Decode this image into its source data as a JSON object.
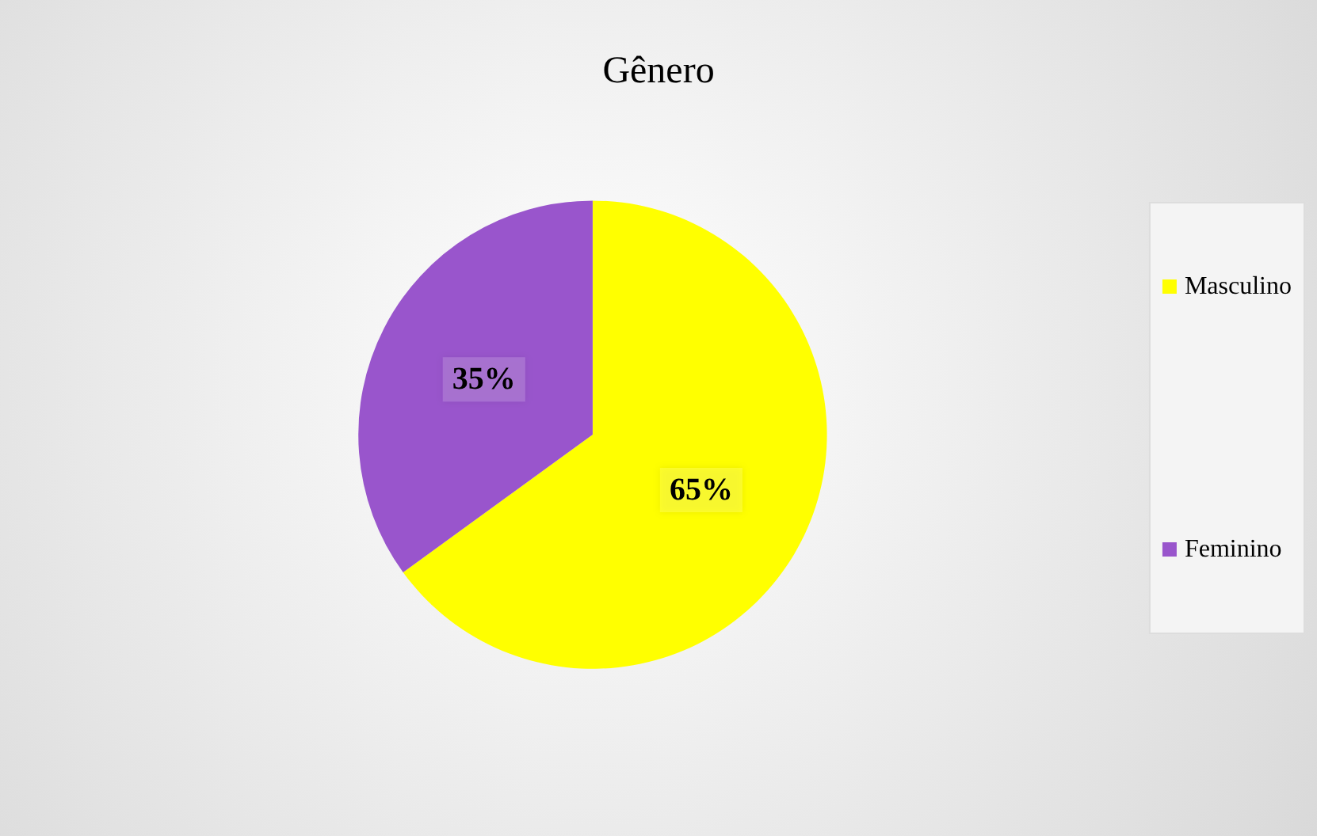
{
  "chart_data": {
    "type": "pie",
    "title": "Gênero",
    "categories": [
      "Masculino",
      "Feminino"
    ],
    "values": [
      65,
      35
    ],
    "colors": [
      "#ffff00",
      "#9955cc"
    ],
    "value_labels": [
      "65%",
      "35%"
    ],
    "legend": "right"
  }
}
